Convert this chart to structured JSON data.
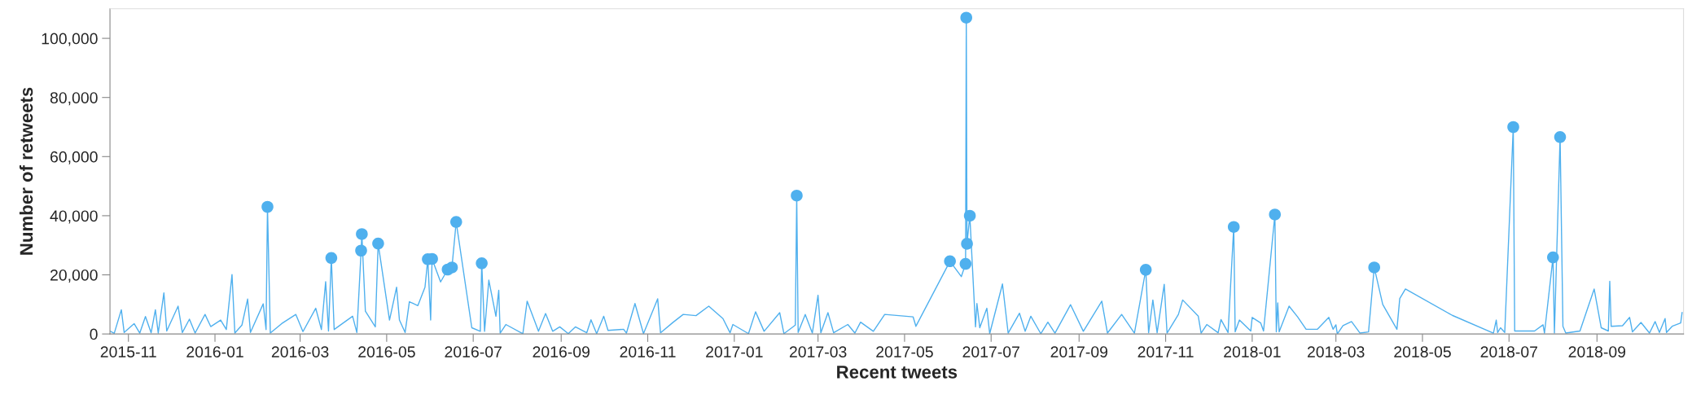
{
  "chart_data": {
    "type": "line",
    "xlabel": "Recent tweets",
    "ylabel": "Number of retweets",
    "xlim": [
      "2015-10-19",
      "2018-11-01"
    ],
    "xticks": [
      "2015-11",
      "2016-01",
      "2016-03",
      "2016-05",
      "2016-07",
      "2016-09",
      "2016-11",
      "2017-01",
      "2017-03",
      "2017-05",
      "2017-07",
      "2017-09",
      "2017-11",
      "2018-01",
      "2018-03",
      "2018-05",
      "2018-07",
      "2018-09"
    ],
    "ylim": [
      0,
      110000
    ],
    "yticks": [
      0,
      {
        "value": 20000,
        "label": "20,000"
      },
      {
        "value": 40000,
        "label": "40,000"
      },
      {
        "value": 60000,
        "label": "60,000"
      },
      {
        "value": 80000,
        "label": "80,000"
      },
      {
        "value": 100000,
        "label": "100,000"
      }
    ],
    "grid": false,
    "legend": false,
    "series": [
      {
        "color": "#4fb0ee",
        "marker": "none",
        "line_style": "solid",
        "x": [
          "2015-10-19",
          "2015-10-22",
          "2015-10-27",
          "2015-10-29",
          "2015-11-05",
          "2015-11-09",
          "2015-11-13",
          "2015-11-17",
          "2015-11-20",
          "2015-11-22",
          "2015-11-26",
          "2015-11-28",
          "2015-12-06",
          "2015-12-09",
          "2015-12-14",
          "2015-12-18",
          "2015-12-25",
          "2015-12-29",
          "2016-01-05",
          "2016-01-09",
          "2016-01-13",
          "2016-01-15",
          "2016-01-20",
          "2016-01-24",
          "2016-01-26",
          "2016-02-04",
          "2016-02-06",
          "2016-02-07",
          "2016-02-09",
          "2016-02-17",
          "2016-02-27",
          "2016-03-03",
          "2016-03-12",
          "2016-03-16",
          "2016-03-19",
          "2016-03-21",
          "2016-03-23",
          "2016-03-25",
          "2016-04-07",
          "2016-04-10",
          "2016-04-13T00:00",
          "2016-04-13T12:00",
          "2016-04-16",
          "2016-04-23",
          "2016-04-25",
          "2016-05-03",
          "2016-05-08",
          "2016-05-10",
          "2016-05-14",
          "2016-05-17",
          "2016-05-23",
          "2016-05-28",
          "2016-05-30",
          "2016-06-01",
          "2016-06-02",
          "2016-06-08",
          "2016-06-13",
          "2016-06-16",
          "2016-06-19",
          "2016-06-30",
          "2016-07-06",
          "2016-07-07",
          "2016-07-09",
          "2016-07-12",
          "2016-07-17",
          "2016-07-19",
          "2016-07-20",
          "2016-07-24",
          "2016-08-05",
          "2016-08-08",
          "2016-08-16",
          "2016-08-21",
          "2016-08-26",
          "2016-08-31",
          "2016-09-06",
          "2016-09-11",
          "2016-09-19",
          "2016-09-22",
          "2016-09-26",
          "2016-10-01",
          "2016-10-04",
          "2016-10-15",
          "2016-10-17",
          "2016-10-23",
          "2016-10-29",
          "2016-11-08",
          "2016-11-10",
          "2016-11-19",
          "2016-11-26",
          "2016-12-05",
          "2016-12-14",
          "2016-12-24",
          "2016-12-29",
          "2016-12-31",
          "2017-01-11",
          "2017-01-16",
          "2017-01-22",
          "2017-02-02",
          "2017-02-05",
          "2017-02-13",
          "2017-02-14",
          "2017-02-15",
          "2017-02-20",
          "2017-02-25",
          "2017-03-01",
          "2017-03-03",
          "2017-03-08",
          "2017-03-12",
          "2017-03-22",
          "2017-03-27",
          "2017-03-31",
          "2017-04-09",
          "2017-04-17",
          "2017-05-07",
          "2017-05-09",
          "2017-06-02",
          "2017-06-10",
          "2017-06-13T00:00",
          "2017-06-13T12:00",
          "2017-06-14",
          "2017-06-16",
          "2017-06-20",
          "2017-06-21",
          "2017-06-23",
          "2017-06-28",
          "2017-06-30",
          "2017-07-09",
          "2017-07-13",
          "2017-07-21",
          "2017-07-25",
          "2017-07-29",
          "2017-08-05",
          "2017-08-10",
          "2017-08-15",
          "2017-08-26",
          "2017-09-04",
          "2017-09-17",
          "2017-09-21",
          "2017-10-01",
          "2017-10-10",
          "2017-10-18",
          "2017-10-20",
          "2017-10-23",
          "2017-10-26",
          "2017-10-31",
          "2017-11-02",
          "2017-11-10",
          "2017-11-13",
          "2017-11-24",
          "2017-11-26",
          "2017-11-30",
          "2017-12-08",
          "2017-12-10",
          "2017-12-15",
          "2017-12-19",
          "2017-12-20",
          "2017-12-23",
          "2017-12-31",
          "2018-01-01",
          "2018-01-07",
          "2018-01-09",
          "2018-01-17",
          "2018-01-18",
          "2018-01-19",
          "2018-01-20",
          "2018-01-27",
          "2018-02-02",
          "2018-02-08",
          "2018-02-16",
          "2018-02-24",
          "2018-02-27",
          "2018-03-01",
          "2018-03-02",
          "2018-03-06",
          "2018-03-12",
          "2018-03-18",
          "2018-03-24",
          "2018-03-28",
          "2018-04-03",
          "2018-04-13",
          "2018-04-15",
          "2018-04-19",
          "2018-05-22",
          "2018-06-20",
          "2018-06-22",
          "2018-06-23",
          "2018-06-25",
          "2018-06-28",
          "2018-07-04",
          "2018-07-05",
          "2018-07-19",
          "2018-07-25",
          "2018-07-26",
          "2018-08-01",
          "2018-08-02",
          "2018-08-06",
          "2018-08-08",
          "2018-08-10",
          "2018-08-20",
          "2018-08-30",
          "2018-09-04",
          "2018-09-09",
          "2018-09-10",
          "2018-09-11",
          "2018-09-19",
          "2018-09-24",
          "2018-09-26",
          "2018-10-02",
          "2018-10-08",
          "2018-10-12",
          "2018-10-15",
          "2018-10-19",
          "2018-10-20",
          "2018-10-24",
          "2018-10-30",
          "2018-10-31"
        ],
        "values": [
          1000,
          200,
          8200,
          500,
          3500,
          300,
          5900,
          400,
          8200,
          300,
          13900,
          1000,
          9400,
          500,
          5000,
          300,
          6600,
          2500,
          4700,
          1500,
          20100,
          300,
          3000,
          11800,
          500,
          10200,
          1500,
          43000,
          300,
          3500,
          6600,
          800,
          8700,
          1500,
          17700,
          1000,
          25700,
          1500,
          6000,
          500,
          28200,
          33800,
          7700,
          2400,
          30600,
          4700,
          15800,
          4700,
          500,
          10900,
          9600,
          15800,
          25300,
          4700,
          25400,
          17600,
          21800,
          22500,
          37900,
          2100,
          900,
          23900,
          900,
          18200,
          6000,
          14800,
          300,
          3200,
          100,
          11100,
          900,
          6900,
          900,
          2400,
          100,
          2400,
          400,
          4800,
          100,
          6000,
          1200,
          1600,
          300,
          10300,
          100,
          11900,
          400,
          4000,
          6600,
          6200,
          9400,
          5200,
          400,
          3200,
          100,
          7500,
          900,
          7200,
          100,
          3000,
          46800,
          500,
          6600,
          300,
          13100,
          400,
          7200,
          400,
          3200,
          300,
          4000,
          900,
          6600,
          5800,
          2600,
          24600,
          19400,
          23700,
          107000,
          30500,
          40000,
          2400,
          10300,
          2100,
          8700,
          100,
          16900,
          300,
          7000,
          900,
          6000,
          100,
          4000,
          300,
          9900,
          900,
          11100,
          300,
          6600,
          300,
          21700,
          400,
          11500,
          400,
          16800,
          300,
          6600,
          11500,
          6000,
          300,
          3200,
          400,
          4900,
          500,
          36200,
          700,
          4700,
          1000,
          5600,
          3700,
          1000,
          40400,
          700,
          10500,
          700,
          9400,
          5800,
          1600,
          1600,
          5600,
          1600,
          3100,
          0,
          2800,
          4200,
          300,
          700,
          22500,
          10000,
          1600,
          12000,
          15200,
          6300,
          300,
          4700,
          500,
          2100,
          500,
          70000,
          1000,
          1000,
          3100,
          300,
          25900,
          300,
          66600,
          2600,
          300,
          1000,
          15200,
          2100,
          1000,
          17800,
          2600,
          2800,
          5600,
          700,
          3900,
          300,
          4200,
          500,
          5200,
          500,
          2600,
          3700,
          7300
        ]
      },
      {
        "type": "scatter",
        "color": "#4fb0ee",
        "marker": "circle",
        "x": [
          "2016-02-07",
          "2016-03-23",
          "2016-04-13T00:00",
          "2016-04-13T12:00",
          "2016-04-25",
          "2016-05-30",
          "2016-06-02",
          "2016-06-13",
          "2016-06-16",
          "2016-06-19",
          "2016-07-07",
          "2017-02-14",
          "2017-06-02",
          "2017-06-13T00:00",
          "2017-06-13T12:00",
          "2017-06-14",
          "2017-06-16",
          "2017-10-18",
          "2017-12-19",
          "2018-01-17",
          "2018-03-28",
          "2018-07-04",
          "2018-08-01",
          "2018-08-06"
        ],
        "values": [
          43000,
          25700,
          28200,
          33800,
          30600,
          25300,
          25400,
          21800,
          22500,
          37900,
          23900,
          46800,
          24600,
          23700,
          107000,
          30500,
          40000,
          21700,
          36200,
          40400,
          22500,
          70000,
          25900,
          66600
        ]
      }
    ]
  }
}
